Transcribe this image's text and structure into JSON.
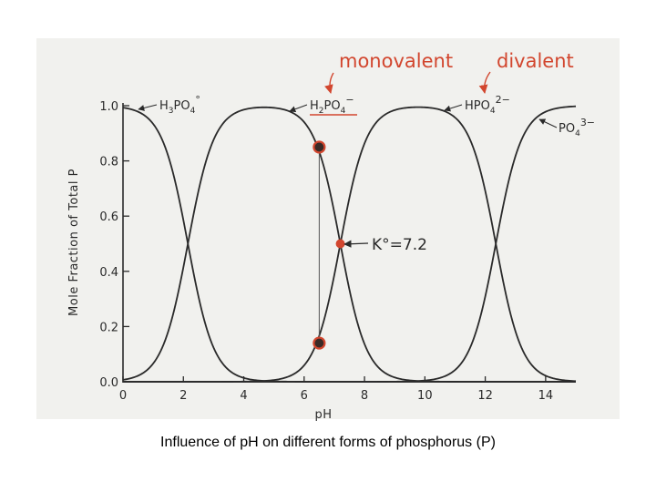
{
  "caption": "Influence of pH on different forms of phosphorus (P)",
  "colors": {
    "curve": "#2a2a2a",
    "annotation": "#d2462e",
    "background": "#f1f1ee"
  },
  "chart_data": {
    "type": "line",
    "title": "",
    "xlabel": "pH",
    "ylabel": "Mole Fraction of Total P",
    "xlim": [
      0,
      15
    ],
    "ylim": [
      0,
      1.0
    ],
    "x_ticks": [
      0,
      2,
      4,
      6,
      8,
      10,
      12,
      14
    ],
    "x_tick_labels": [
      "0",
      "2",
      "4",
      "6",
      "8",
      "10",
      "12",
      "14"
    ],
    "y_ticks": [
      0.0,
      0.2,
      0.4,
      0.6,
      0.8,
      1.0
    ],
    "y_tick_labels": [
      "0.0",
      "0.2",
      "0.4",
      "0.6",
      "0.8",
      "1.0"
    ],
    "grid": false,
    "pKa": [
      2.15,
      7.2,
      12.35
    ],
    "series": [
      {
        "name": "H3PO4°",
        "label_main": "H",
        "sub1": "3",
        "mid": "PO",
        "sub2": "4",
        "sup": "°"
      },
      {
        "name": "H2PO4−",
        "label_main": "H",
        "sub1": "2",
        "mid": "PO",
        "sub2": "4",
        "sup": "−"
      },
      {
        "name": "HPO4 2−",
        "label_main": "HPO",
        "sub1": "",
        "mid": "",
        "sub2": "4",
        "sup": "2−"
      },
      {
        "name": "PO4 3−",
        "label_main": "PO",
        "sub1": "",
        "mid": "",
        "sub2": "4",
        "sup": "3−"
      }
    ],
    "markers": [
      {
        "x": 6.5,
        "y": 0.85
      },
      {
        "x": 6.5,
        "y": 0.14
      },
      {
        "x": 7.2,
        "y": 0.5
      }
    ],
    "annotations": {
      "monovalent": "monovalent",
      "divalent": "divalent",
      "k_label": "K°=7.2"
    }
  }
}
